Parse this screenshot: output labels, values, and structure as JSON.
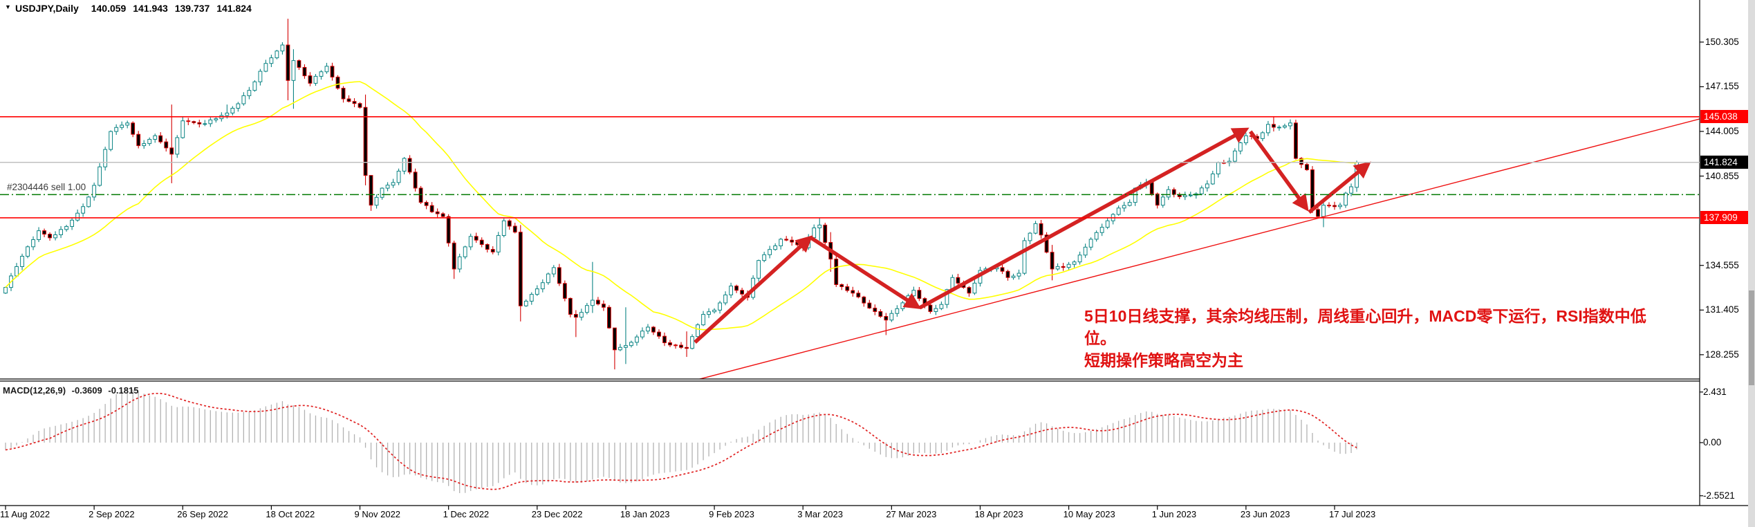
{
  "title": {
    "symbol_period": "USDJPY,Daily",
    "open": "140.059",
    "high": "141.943",
    "low": "139.737",
    "close": "141.824"
  },
  "icons": {
    "dropdown_triangle": "▼"
  },
  "order_line": {
    "label": "#2304446 sell 1.00",
    "price": 139.55
  },
  "indicator": {
    "name": "MACD(12,26,9)",
    "main_value": "-0.3609",
    "signal_value": "-0.1815",
    "ticks": [
      {
        "label": "2.431",
        "value": 2.431
      },
      {
        "label": "0.00",
        "value": 0.0
      },
      {
        "label": "-2.5521",
        "value": -2.5521
      }
    ]
  },
  "annotation": {
    "line1": "5日10日线支撑，其余均线压制，周线重心回升，MACD零下运行，RSI指数中低位。",
    "line2": "短期操作策略高空为主"
  },
  "price_axis": {
    "ticks": [
      {
        "label": "150.305",
        "value": 150.305
      },
      {
        "label": "147.155",
        "value": 147.155
      },
      {
        "label": "144.005",
        "value": 144.005
      },
      {
        "label": "140.855",
        "value": 140.855
      },
      {
        "label": "134.555",
        "value": 134.555
      },
      {
        "label": "131.405",
        "value": 131.405
      },
      {
        "label": "128.255",
        "value": 128.255
      }
    ],
    "badges": [
      {
        "label": "145.038",
        "value": 145.038,
        "bg": "#ff0000"
      },
      {
        "label": "141.824",
        "value": 141.824,
        "bg": "#000000"
      },
      {
        "label": "137.909",
        "value": 137.909,
        "bg": "#ff0000"
      }
    ]
  },
  "colors": {
    "bull": "#0b8484",
    "bull_fill": "#ffffff",
    "bear": "#d40000",
    "bear_fill": "#000000",
    "ma": "#ffff00",
    "hline": "#ff0000",
    "trendline": "#ee1111",
    "arrow": "#d42222",
    "order": "#007800",
    "current": "#c0c0c0",
    "macd_bar": "#b2b2b2",
    "macd_signal": "#e02020",
    "annotation": "#e01212",
    "axis": "#000000",
    "grid_none": true
  },
  "chart_data": {
    "type": "candlestick",
    "symbol": "USDJPY",
    "timeframe": "Daily",
    "x_labels": [
      "11 Aug 2022",
      "2 Sep 2022",
      "26 Sep 2022",
      "18 Oct 2022",
      "9 Nov 2022",
      "1 Dec 2022",
      "23 Dec 2022",
      "18 Jan 2023",
      "9 Feb 2023",
      "3 Mar 2023",
      "27 Mar 2023",
      "18 Apr 2023",
      "10 May 2023",
      "1 Jun 2023",
      "23 Jun 2023",
      "17 Jul 2023"
    ],
    "candles_per_label": 16,
    "n_candles": 245,
    "price_range_visible": [
      126.5,
      153.3
    ],
    "anchors": [
      [
        0,
        133.0
      ],
      [
        3,
        135.2
      ],
      [
        6,
        137.0
      ],
      [
        8,
        136.5
      ],
      [
        11,
        137.3
      ],
      [
        14,
        138.7
      ],
      [
        16,
        140.2
      ],
      [
        19,
        144.0
      ],
      [
        22,
        144.6
      ],
      [
        24,
        143.0
      ],
      [
        27,
        143.7
      ],
      [
        30,
        142.4,
        145.9,
        140.35
      ],
      [
        32,
        144.75
      ],
      [
        36,
        144.55
      ],
      [
        40,
        145.3,
        145.9
      ],
      [
        44,
        146.9
      ],
      [
        47,
        148.8
      ],
      [
        50,
        150.1
      ],
      [
        51,
        147.6,
        151.95,
        146.2
      ],
      [
        52,
        149.0,
        149.8,
        145.6
      ],
      [
        55,
        147.4
      ],
      [
        58,
        148.6
      ],
      [
        61,
        146.3
      ],
      [
        64,
        145.7
      ],
      [
        65,
        140.9,
        146.6,
        140.2
      ],
      [
        66,
        138.8,
        140.9,
        138.4
      ],
      [
        68,
        140.0
      ],
      [
        70,
        140.4
      ],
      [
        72,
        142.1
      ],
      [
        75,
        139.0
      ],
      [
        79,
        138.0
      ],
      [
        81,
        134.3,
        136.3,
        133.6
      ],
      [
        84,
        136.6
      ],
      [
        88,
        135.5
      ],
      [
        90,
        137.7
      ],
      [
        92,
        136.9
      ],
      [
        93,
        131.7,
        137.4,
        130.6
      ],
      [
        96,
        132.9
      ],
      [
        99,
        134.4
      ],
      [
        102,
        131.1
      ],
      [
        103,
        130.9,
        131.4,
        129.5
      ],
      [
        106,
        132.1,
        134.8,
        131.2
      ],
      [
        108,
        131.6
      ],
      [
        110,
        128.6,
        129.9,
        127.22
      ],
      [
        112,
        128.9,
        131.6,
        127.6
      ],
      [
        116,
        130.2
      ],
      [
        119,
        129.1
      ],
      [
        123,
        128.7,
        129.9,
        128.1
      ],
      [
        126,
        131.1
      ],
      [
        128,
        131.4
      ],
      [
        131,
        133.1
      ],
      [
        134,
        132.3
      ],
      [
        136,
        134.9
      ],
      [
        140,
        136.4
      ],
      [
        142,
        136.2
      ],
      [
        144,
        135.8
      ],
      [
        146,
        137.2
      ],
      [
        147,
        137.4,
        137.91,
        136.3
      ],
      [
        149,
        135.0,
        136.9,
        134.1
      ],
      [
        150,
        133.2
      ],
      [
        153,
        132.6
      ],
      [
        155,
        131.9
      ],
      [
        157,
        131.3
      ],
      [
        159,
        130.7,
        131.2,
        129.64
      ],
      [
        161,
        131.5
      ],
      [
        164,
        132.8
      ],
      [
        167,
        131.3
      ],
      [
        169,
        131.8
      ],
      [
        171,
        133.7
      ],
      [
        174,
        132.6
      ],
      [
        176,
        134.2
      ],
      [
        179,
        134.4
      ],
      [
        181,
        133.7
      ],
      [
        183,
        134.0
      ],
      [
        184,
        136.3
      ],
      [
        186,
        137.5
      ],
      [
        187,
        136.7
      ],
      [
        189,
        134.3,
        136.0,
        133.5
      ],
      [
        193,
        134.8
      ],
      [
        196,
        136.4
      ],
      [
        199,
        137.7
      ],
      [
        201,
        138.6
      ],
      [
        203,
        139.0
      ],
      [
        204,
        140.0
      ],
      [
        206,
        140.4
      ],
      [
        208,
        138.8
      ],
      [
        210,
        139.9
      ],
      [
        212,
        139.4
      ],
      [
        215,
        139.6
      ],
      [
        217,
        140.3
      ],
      [
        219,
        141.8
      ],
      [
        221,
        141.9
      ],
      [
        223,
        143.2
      ],
      [
        224,
        143.7
      ],
      [
        226,
        143.5
      ],
      [
        228,
        144.5
      ],
      [
        229,
        144.3,
        145.07,
        144.0
      ],
      [
        231,
        144.4
      ],
      [
        232,
        144.6
      ],
      [
        233,
        142.1
      ],
      [
        235,
        141.3
      ],
      [
        236,
        138.5
      ],
      [
        237,
        138.0
      ],
      [
        238,
        138.8,
        139.2,
        137.25
      ],
      [
        240,
        138.7
      ],
      [
        241,
        138.8
      ],
      [
        242,
        139.65
      ],
      [
        243,
        140.1
      ],
      [
        244,
        141.824,
        141.943,
        139.737
      ]
    ],
    "open_override": {
      "0": 132.6,
      "244": 140.059
    },
    "ma_period": 25,
    "macd": {
      "fast": 12,
      "slow": 26,
      "signal": 9
    },
    "horizontal_lines": [
      145.038,
      137.909
    ],
    "current_price": 141.824,
    "order_sell_price": 139.55,
    "trendline": {
      "i1": 124.5,
      "p1": 126.45,
      "i2": 305.9,
      "p2": 144.88
    },
    "arrows": [
      {
        "i1": 124.5,
        "p1": 129.13,
        "i2": 145.1,
        "p2": 136.44
      },
      {
        "i1": 145.3,
        "p1": 136.54,
        "i2": 164.6,
        "p2": 131.66
      },
      {
        "i1": 165.1,
        "p1": 131.57,
        "i2": 223.8,
        "p2": 144.1
      },
      {
        "i1": 224.8,
        "p1": 144.0,
        "i2": 234.8,
        "p2": 138.64
      },
      {
        "i1": 235.4,
        "p1": 138.3,
        "i2": 245.9,
        "p2": 141.66
      }
    ]
  }
}
